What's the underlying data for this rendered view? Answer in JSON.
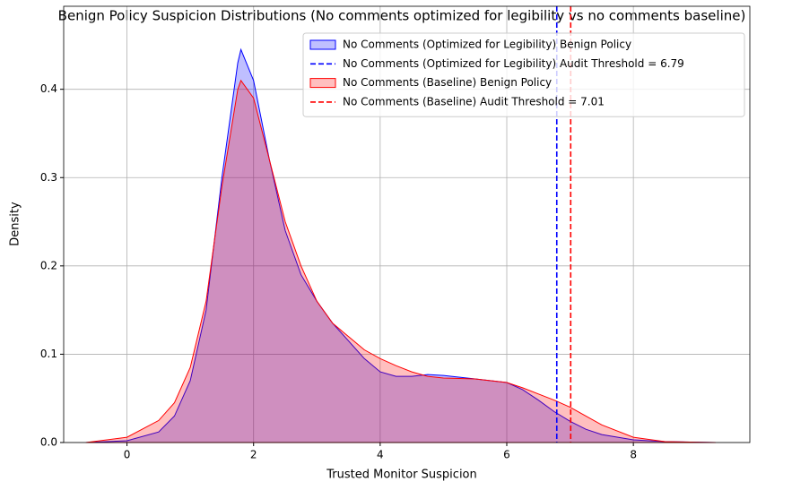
{
  "chart_data": {
    "type": "kde",
    "title": "Benign Policy Suspicion Distributions (No comments optimized for legibility vs no comments baseline)",
    "x_label": "Trusted Monitor Suspicion",
    "y_label": "Density",
    "x": [
      -0.65,
      0,
      0.5,
      0.75,
      1.0,
      1.25,
      1.5,
      1.75,
      1.8,
      2.0,
      2.25,
      2.5,
      2.75,
      3.0,
      3.25,
      3.5,
      3.75,
      4.0,
      4.25,
      4.5,
      4.75,
      5.0,
      5.5,
      6.0,
      6.25,
      6.5,
      6.75,
      7.0,
      7.25,
      7.5,
      8.0,
      8.5,
      9.3
    ],
    "series": [
      {
        "name": "No Comments (Optimized for Legibility) Benign Policy",
        "color": "#0000ff",
        "values": [
          0,
          0.002,
          0.012,
          0.03,
          0.07,
          0.15,
          0.3,
          0.43,
          0.445,
          0.41,
          0.32,
          0.24,
          0.19,
          0.16,
          0.135,
          0.115,
          0.095,
          0.08,
          0.075,
          0.075,
          0.077,
          0.076,
          0.072,
          0.068,
          0.06,
          0.048,
          0.035,
          0.024,
          0.015,
          0.009,
          0.003,
          0.001,
          0
        ]
      },
      {
        "name": "No Comments (Baseline) Benign Policy",
        "color": "#ff0000",
        "values": [
          0,
          0.006,
          0.025,
          0.045,
          0.085,
          0.16,
          0.29,
          0.4,
          0.41,
          0.39,
          0.32,
          0.25,
          0.2,
          0.16,
          0.135,
          0.12,
          0.105,
          0.095,
          0.087,
          0.08,
          0.075,
          0.073,
          0.072,
          0.068,
          0.062,
          0.055,
          0.048,
          0.04,
          0.03,
          0.02,
          0.006,
          0.001,
          0
        ]
      }
    ],
    "thresholds": [
      {
        "name": "No Comments (Optimized for Legibility) Audit Threshold = 6.79",
        "value": 6.79,
        "color": "#0000ff"
      },
      {
        "name": "No Comments (Baseline) Audit Threshold = 7.01",
        "value": 7.01,
        "color": "#ff0000"
      }
    ],
    "xlim": [
      -1.0,
      9.84
    ],
    "ylim": [
      0,
      0.494
    ],
    "xticks": [
      0,
      2,
      4,
      6,
      8
    ],
    "yticks": [
      {
        "value": 0,
        "label": "0.0"
      },
      0.1,
      0.2,
      0.3,
      0.4
    ],
    "grid": true,
    "legend": "upper right"
  }
}
